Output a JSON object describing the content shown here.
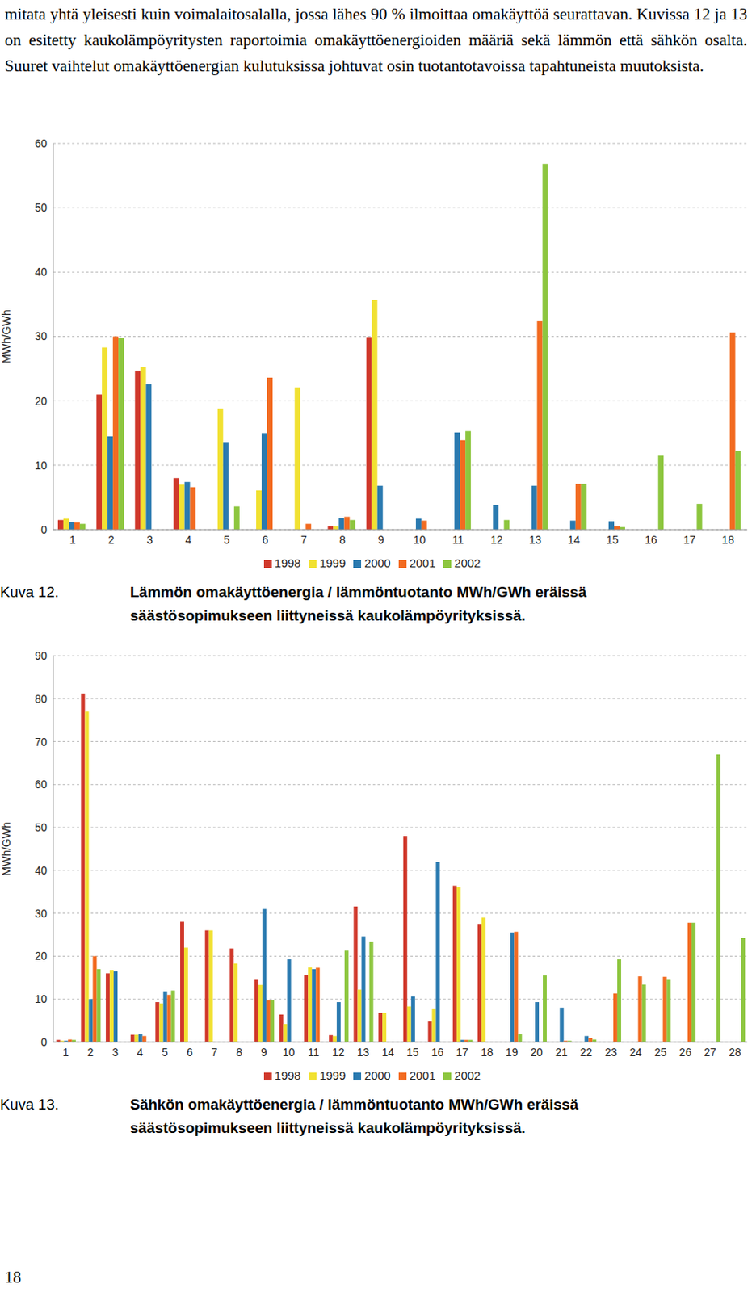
{
  "paragraph": "mitata yhtä yleisesti kuin voimalaitosalalla, jossa lähes 90 % ilmoittaa omakäyttöä seurattavan. Kuvissa 12 ja 13 on esitetty kaukolämpöyritysten raportoimia omakäyttöenergioiden määriä sekä lämmön että sähkön osalta. Suuret vaihtelut omakäyttöenergian kulutuksissa johtuvat osin tuotantotavoissa tapahtuneista muutoksista.",
  "page_number": "18",
  "chart_data": [
    {
      "type": "bar",
      "figure_label": "Kuva 12.",
      "title": "Lämmön omakäyttöenergia / lämmöntuotanto MWh/GWh eräissä säästösopimukseen liittyneissä kaukolämpöyrityksissä.",
      "y_label": "MWh/GWh",
      "categories": [
        "1",
        "2",
        "3",
        "4",
        "5",
        "6",
        "7",
        "8",
        "9",
        "10",
        "11",
        "12",
        "13",
        "14",
        "15",
        "16",
        "17",
        "18"
      ],
      "series": [
        {
          "name": "1998",
          "color": "#d0382b",
          "values": [
            1.5,
            21,
            24.7,
            8,
            null,
            null,
            null,
            0.5,
            29.9,
            null,
            null,
            null,
            null,
            null,
            null,
            null,
            null,
            null
          ]
        },
        {
          "name": "1999",
          "color": "#f1e131",
          "values": [
            1.7,
            28.3,
            25.3,
            7,
            18.8,
            6.1,
            22.1,
            0.5,
            35.7,
            null,
            null,
            null,
            null,
            null,
            null,
            null,
            null,
            null
          ]
        },
        {
          "name": "2000",
          "color": "#2a7ab0",
          "values": [
            1.2,
            14.5,
            22.6,
            7.4,
            13.6,
            15,
            null,
            1.8,
            6.8,
            1.7,
            15.1,
            3.8,
            6.8,
            1.4,
            1.3,
            null,
            null,
            null
          ]
        },
        {
          "name": "2001",
          "color": "#f26b21",
          "values": [
            1.1,
            30,
            null,
            6.6,
            null,
            23.6,
            0.9,
            2,
            null,
            1.4,
            13.9,
            null,
            32.5,
            7.1,
            0.5,
            null,
            null,
            30.6
          ]
        },
        {
          "name": "2002",
          "color": "#8dc63f",
          "values": [
            0.9,
            29.8,
            null,
            null,
            3.6,
            null,
            null,
            1.5,
            null,
            null,
            15.3,
            1.5,
            56.8,
            7.1,
            0.4,
            11.5,
            4,
            12.2
          ]
        }
      ],
      "ylim": [
        0,
        60
      ],
      "yticks": [
        0,
        10,
        20,
        30,
        40,
        50,
        60
      ],
      "grid": true,
      "legend": "bottom"
    },
    {
      "type": "bar",
      "figure_label": "Kuva 13.",
      "title": "Sähkön omakäyttöenergia / lämmöntuotanto MWh/GWh eräissä säästösopimukseen liittyneissä kaukolämpöyrityksissä.",
      "y_label": "MWh/GWh",
      "categories": [
        "1",
        "2",
        "3",
        "4",
        "5",
        "6",
        "7",
        "8",
        "9",
        "10",
        "11",
        "12",
        "13",
        "14",
        "15",
        "16",
        "17",
        "18",
        "19",
        "20",
        "21",
        "22",
        "23",
        "24",
        "25",
        "26",
        "27",
        "28"
      ],
      "series": [
        {
          "name": "1998",
          "color": "#d0382b",
          "values": [
            0.5,
            81.2,
            16,
            1.7,
            9.3,
            28,
            26,
            21.8,
            14.5,
            6.4,
            15.7,
            1.6,
            31.6,
            6.8,
            48,
            4.8,
            36.4,
            27.5,
            null,
            null,
            null,
            null,
            null,
            null,
            null,
            null,
            null,
            null
          ]
        },
        {
          "name": "1999",
          "color": "#f1e131",
          "values": [
            0.3,
            77,
            16.8,
            1.7,
            9,
            22,
            26,
            18.3,
            13.3,
            4.2,
            17.4,
            1.4,
            12.2,
            6.8,
            8.3,
            7.8,
            36.1,
            29,
            null,
            null,
            null,
            null,
            null,
            null,
            null,
            null,
            null,
            null
          ]
        },
        {
          "name": "2000",
          "color": "#2a7ab0",
          "values": [
            0.3,
            10,
            16.5,
            1.8,
            11.8,
            null,
            null,
            null,
            31,
            19.3,
            17,
            9.3,
            24.6,
            null,
            10.6,
            42,
            0.5,
            null,
            25.5,
            9.3,
            8,
            1.4,
            null,
            null,
            null,
            null,
            null,
            null
          ]
        },
        {
          "name": "2001",
          "color": "#f26b21",
          "values": [
            0.6,
            20,
            null,
            1.4,
            11,
            null,
            null,
            null,
            9.7,
            null,
            17.3,
            null,
            null,
            null,
            null,
            null,
            0.5,
            null,
            25.7,
            null,
            0.3,
            0.9,
            11.3,
            15.3,
            15.2,
            27.8,
            null,
            null
          ]
        },
        {
          "name": "2002",
          "color": "#8dc63f",
          "values": [
            0.5,
            17,
            null,
            null,
            12,
            null,
            null,
            null,
            9.8,
            null,
            null,
            21.3,
            23.4,
            null,
            null,
            null,
            0.5,
            null,
            1.8,
            15.5,
            0.3,
            0.6,
            19.3,
            13.4,
            14.5,
            27.8,
            67,
            24.3
          ]
        }
      ],
      "ylim": [
        0,
        90
      ],
      "yticks": [
        0,
        10,
        20,
        30,
        40,
        50,
        60,
        70,
        80,
        90
      ],
      "grid": true,
      "legend": "bottom"
    }
  ]
}
